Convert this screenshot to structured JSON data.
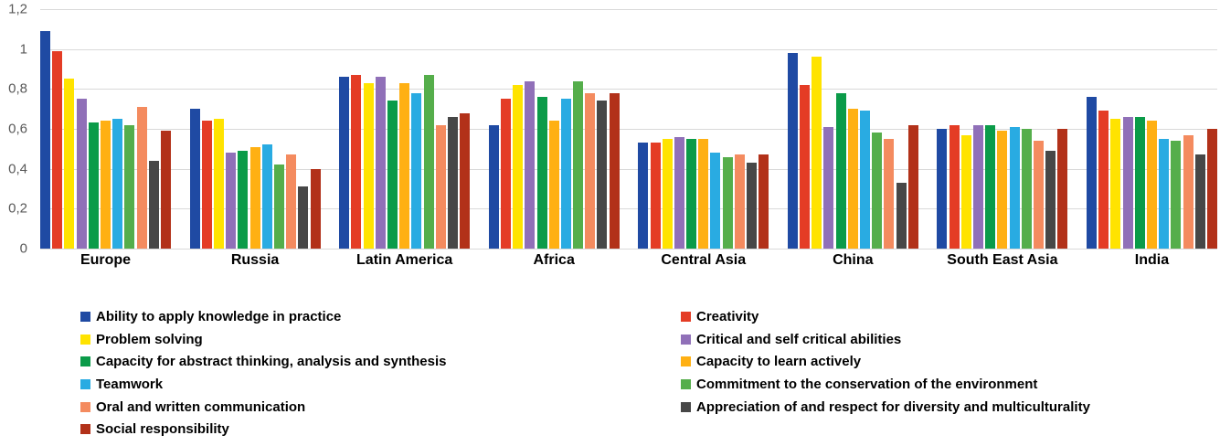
{
  "chart_data": {
    "type": "bar",
    "title": "",
    "xlabel": "",
    "ylabel": "",
    "ylim": [
      0,
      1.2
    ],
    "grid": true,
    "grid_color": "#d9d9d9",
    "tick_color": "#595959",
    "label_color": "#000000",
    "y_ticks": [
      "1,2",
      "1",
      "0,8",
      "0,6",
      "0,4",
      "0,2",
      "0"
    ],
    "categories": [
      "Europe",
      "Russia",
      "Latin America",
      "Africa",
      "Central Asia",
      "China",
      "South East Asia",
      "India"
    ],
    "series": [
      {
        "name": "Ability to apply knowledge in practice",
        "color": "#1F4AA3",
        "values": [
          1.09,
          0.7,
          0.86,
          0.62,
          0.53,
          0.98,
          0.6,
          0.76
        ]
      },
      {
        "name": "Creativity",
        "color": "#E43C25",
        "values": [
          0.99,
          0.64,
          0.87,
          0.75,
          0.53,
          0.82,
          0.62,
          0.69
        ]
      },
      {
        "name": "Problem solving",
        "color": "#FFE300",
        "values": [
          0.85,
          0.65,
          0.83,
          0.82,
          0.55,
          0.96,
          0.57,
          0.65
        ]
      },
      {
        "name": "Critical and self critical abilities",
        "color": "#9070B8",
        "values": [
          0.75,
          0.48,
          0.86,
          0.84,
          0.56,
          0.61,
          0.62,
          0.66
        ]
      },
      {
        "name": "Capacity for abstract thinking, analysis and synthesis",
        "color": "#0B9B49",
        "values": [
          0.63,
          0.49,
          0.74,
          0.76,
          0.55,
          0.78,
          0.62,
          0.66
        ]
      },
      {
        "name": "Capacity to learn actively",
        "color": "#FFB013",
        "values": [
          0.64,
          0.51,
          0.83,
          0.64,
          0.55,
          0.7,
          0.59,
          0.64
        ]
      },
      {
        "name": "Teamwork",
        "color": "#29ABE2",
        "values": [
          0.65,
          0.52,
          0.78,
          0.75,
          0.48,
          0.69,
          0.61,
          0.55
        ]
      },
      {
        "name": "Commitment to the conservation of the environment",
        "color": "#55AE4B",
        "values": [
          0.62,
          0.42,
          0.87,
          0.84,
          0.46,
          0.58,
          0.6,
          0.54
        ]
      },
      {
        "name": "Oral and written communication",
        "color": "#F48B5F",
        "values": [
          0.71,
          0.47,
          0.62,
          0.78,
          0.47,
          0.55,
          0.54,
          0.57
        ]
      },
      {
        "name": "Appreciation of and respect for diversity and multiculturality",
        "color": "#474747",
        "values": [
          0.44,
          0.31,
          0.66,
          0.74,
          0.43,
          0.33,
          0.49,
          0.47
        ]
      },
      {
        "name": "Social responsibility",
        "color": "#B23119",
        "values": [
          0.59,
          0.4,
          0.68,
          0.78,
          0.47,
          0.62,
          0.6,
          0.6
        ]
      }
    ],
    "legend_position": "bottom",
    "legend_columns": {
      "left": [
        0,
        2,
        4,
        6,
        8,
        10
      ],
      "right": [
        1,
        3,
        5,
        7,
        9
      ]
    }
  }
}
